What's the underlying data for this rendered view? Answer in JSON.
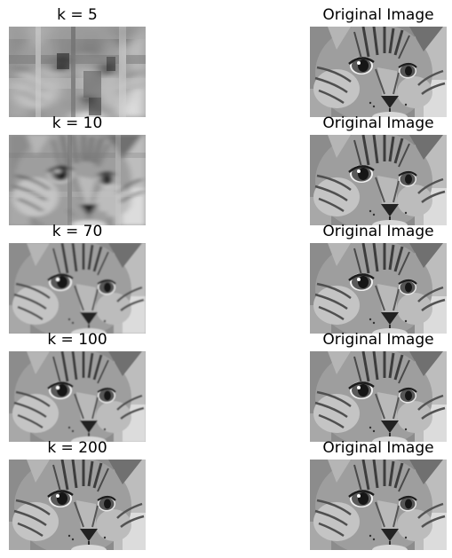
{
  "panels": [
    {
      "title": "k = 5",
      "image": "cat-reconstruction-k5"
    },
    {
      "title": "Original Image",
      "image": "cat-original"
    },
    {
      "title": "k = 10",
      "image": "cat-reconstruction-k10"
    },
    {
      "title": "Original Image",
      "image": "cat-original"
    },
    {
      "title": "k = 70",
      "image": "cat-reconstruction-k70"
    },
    {
      "title": "Original Image",
      "image": "cat-original"
    },
    {
      "title": "k = 100",
      "image": "cat-reconstruction-k100"
    },
    {
      "title": "Original Image",
      "image": "cat-original"
    },
    {
      "title": "k = 200",
      "image": "cat-reconstruction-k200"
    },
    {
      "title": "Original Image",
      "image": "cat-original"
    }
  ]
}
